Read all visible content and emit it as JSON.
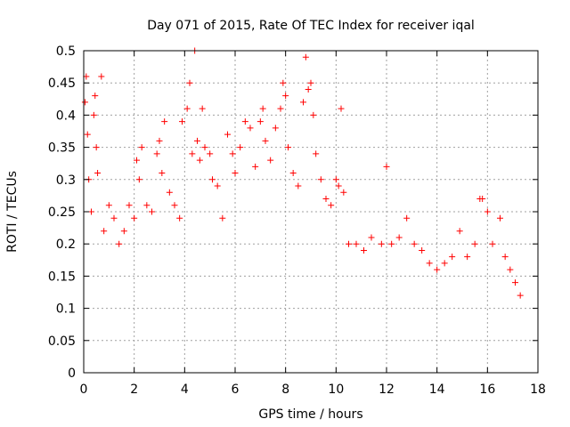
{
  "chart_data": {
    "type": "scatter",
    "title": "Day 071 of 2015, Rate Of TEC Index for receiver iqal",
    "xlabel": "GPS time / hours",
    "ylabel": "ROTI / TECUs",
    "xlim": [
      0,
      18
    ],
    "ylim": [
      0,
      0.5
    ],
    "x_ticks": [
      "0",
      "2",
      "4",
      "6",
      "8",
      "10",
      "12",
      "14",
      "16",
      "18"
    ],
    "y_ticks": [
      "0",
      "0.05",
      "0.1",
      "0.15",
      "0.2",
      "0.25",
      "0.3",
      "0.35",
      "0.4",
      "0.45",
      "0.5"
    ],
    "grid": true,
    "marker": "plus",
    "color": "#ff0000",
    "series": [
      {
        "points": [
          [
            0.05,
            0.42
          ],
          [
            0.1,
            0.46
          ],
          [
            0.15,
            0.37
          ],
          [
            0.2,
            0.3
          ],
          [
            0.3,
            0.25
          ],
          [
            0.4,
            0.4
          ],
          [
            0.45,
            0.43
          ],
          [
            0.5,
            0.35
          ],
          [
            0.55,
            0.31
          ],
          [
            0.7,
            0.46
          ],
          [
            0.8,
            0.22
          ],
          [
            1.0,
            0.26
          ],
          [
            1.2,
            0.24
          ],
          [
            1.4,
            0.2
          ],
          [
            1.6,
            0.22
          ],
          [
            1.8,
            0.26
          ],
          [
            2.0,
            0.24
          ],
          [
            2.1,
            0.33
          ],
          [
            2.2,
            0.3
          ],
          [
            2.3,
            0.35
          ],
          [
            2.5,
            0.26
          ],
          [
            2.7,
            0.25
          ],
          [
            2.9,
            0.34
          ],
          [
            3.0,
            0.36
          ],
          [
            3.1,
            0.31
          ],
          [
            3.2,
            0.39
          ],
          [
            3.4,
            0.28
          ],
          [
            3.6,
            0.26
          ],
          [
            3.8,
            0.24
          ],
          [
            3.9,
            0.39
          ],
          [
            4.1,
            0.41
          ],
          [
            4.2,
            0.45
          ],
          [
            4.3,
            0.34
          ],
          [
            4.4,
            0.5
          ],
          [
            4.5,
            0.36
          ],
          [
            4.6,
            0.33
          ],
          [
            4.7,
            0.41
          ],
          [
            4.8,
            0.35
          ],
          [
            5.0,
            0.34
          ],
          [
            5.1,
            0.3
          ],
          [
            5.3,
            0.29
          ],
          [
            5.5,
            0.24
          ],
          [
            5.7,
            0.37
          ],
          [
            5.9,
            0.34
          ],
          [
            6.0,
            0.31
          ],
          [
            6.2,
            0.35
          ],
          [
            6.4,
            0.39
          ],
          [
            6.6,
            0.38
          ],
          [
            6.8,
            0.32
          ],
          [
            7.0,
            0.39
          ],
          [
            7.1,
            0.41
          ],
          [
            7.2,
            0.36
          ],
          [
            7.4,
            0.33
          ],
          [
            7.6,
            0.38
          ],
          [
            7.8,
            0.41
          ],
          [
            7.9,
            0.45
          ],
          [
            8.0,
            0.43
          ],
          [
            8.1,
            0.35
          ],
          [
            8.3,
            0.31
          ],
          [
            8.5,
            0.29
          ],
          [
            8.7,
            0.42
          ],
          [
            8.8,
            0.49
          ],
          [
            8.9,
            0.44
          ],
          [
            9.0,
            0.45
          ],
          [
            9.1,
            0.4
          ],
          [
            9.2,
            0.34
          ],
          [
            9.4,
            0.3
          ],
          [
            9.6,
            0.27
          ],
          [
            9.8,
            0.26
          ],
          [
            10.0,
            0.3
          ],
          [
            10.1,
            0.29
          ],
          [
            10.2,
            0.41
          ],
          [
            10.3,
            0.28
          ],
          [
            10.5,
            0.2
          ],
          [
            10.8,
            0.2
          ],
          [
            11.1,
            0.19
          ],
          [
            11.4,
            0.21
          ],
          [
            11.8,
            0.2
          ],
          [
            12.0,
            0.32
          ],
          [
            12.2,
            0.2
          ],
          [
            12.5,
            0.21
          ],
          [
            12.8,
            0.24
          ],
          [
            13.1,
            0.2
          ],
          [
            13.4,
            0.19
          ],
          [
            13.7,
            0.17
          ],
          [
            14.0,
            0.16
          ],
          [
            14.3,
            0.17
          ],
          [
            14.6,
            0.18
          ],
          [
            14.9,
            0.22
          ],
          [
            15.2,
            0.18
          ],
          [
            15.5,
            0.2
          ],
          [
            15.7,
            0.27
          ],
          [
            15.8,
            0.27
          ],
          [
            16.0,
            0.25
          ],
          [
            16.2,
            0.2
          ],
          [
            16.5,
            0.24
          ],
          [
            16.7,
            0.18
          ],
          [
            16.9,
            0.16
          ],
          [
            17.1,
            0.14
          ],
          [
            17.3,
            0.12
          ]
        ]
      }
    ]
  }
}
